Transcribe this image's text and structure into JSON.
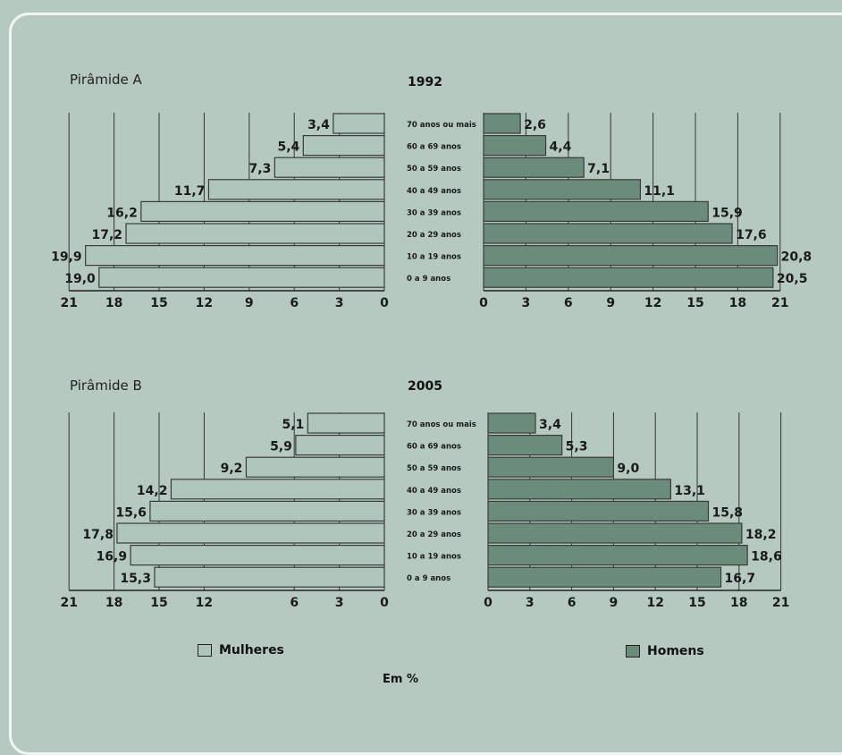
{
  "colors": {
    "women": "#aec6bc",
    "men": "#6b8b7b",
    "border": "#3a3a3a",
    "background": "#b6c9c0"
  },
  "legend": {
    "women_label": "Mulheres",
    "men_label": "Homens"
  },
  "units_label": "Em %",
  "chart_data": [
    {
      "type": "bar",
      "pyramid_label": "Pirâmide A",
      "year": "1992",
      "categories": [
        "70 anos ou mais",
        "60 a 69 anos",
        "50 a 59 anos",
        "40 a 49 anos",
        "30 a 39 anos",
        "20 a 29 anos",
        "10 a 19 anos",
        "0 a 9 anos"
      ],
      "series": [
        {
          "name": "Mulheres",
          "values": [
            3.4,
            5.4,
            7.3,
            11.7,
            16.2,
            17.2,
            19.9,
            19.0
          ],
          "labels": [
            "3,4",
            "5,4",
            "7,3",
            "11,7",
            "16,2",
            "17,2",
            "19,9",
            "19,0"
          ]
        },
        {
          "name": "Homens",
          "values": [
            2.6,
            4.4,
            7.1,
            11.1,
            15.9,
            17.6,
            20.8,
            20.5
          ],
          "labels": [
            "2,6",
            "4,4",
            "7,1",
            "11,1",
            "15,9",
            "17,6",
            "20,8",
            "20,5"
          ]
        }
      ],
      "women_ticks": [
        21,
        18,
        15,
        12,
        9,
        6,
        3,
        0
      ],
      "men_ticks": [
        0,
        3,
        6,
        9,
        12,
        15,
        18,
        21
      ],
      "xlim": [
        0,
        21
      ]
    },
    {
      "type": "bar",
      "pyramid_label": "Pirâmide B",
      "year": "2005",
      "categories": [
        "70 anos ou mais",
        "60 a 69 anos",
        "50 a 59 anos",
        "40 a 49 anos",
        "30 a 39 anos",
        "20 a 29 anos",
        "10 a 19 anos",
        "0 a 9 anos"
      ],
      "series": [
        {
          "name": "Mulheres",
          "values": [
            5.1,
            5.9,
            9.2,
            14.2,
            15.6,
            17.8,
            16.9,
            15.3
          ],
          "labels": [
            "5,1",
            "5,9",
            "9,2",
            "14,2",
            "15,6",
            "17,8",
            "16,9",
            "15,3"
          ]
        },
        {
          "name": "Homens",
          "values": [
            3.4,
            5.3,
            9.0,
            13.1,
            15.8,
            18.2,
            18.6,
            16.7
          ],
          "labels": [
            "3,4",
            "5,3",
            "9,0",
            "13,1",
            "15,8",
            "18,2",
            "18,6",
            "16,7"
          ]
        }
      ],
      "women_ticks": [
        21,
        18,
        15,
        12,
        6,
        3,
        0
      ],
      "men_ticks": [
        0,
        3,
        6,
        9,
        12,
        15,
        18,
        21
      ],
      "xlim": [
        0,
        21
      ]
    }
  ]
}
